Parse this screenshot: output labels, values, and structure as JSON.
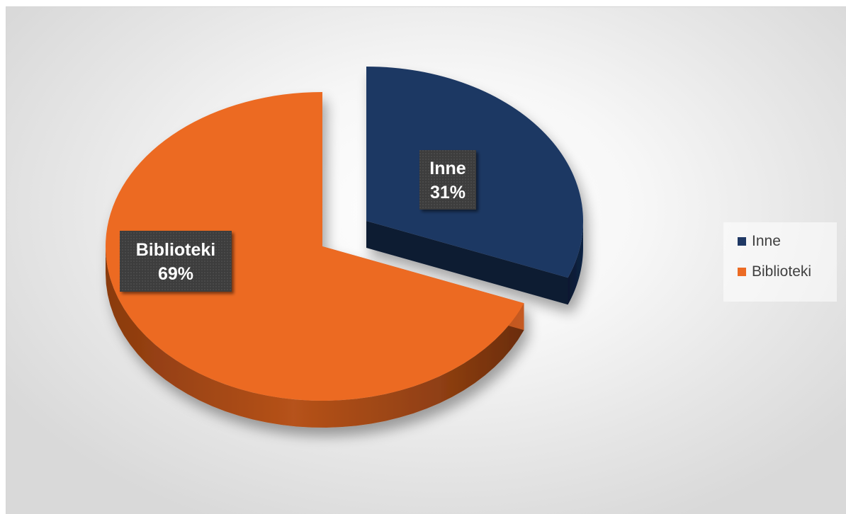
{
  "chart_data": {
    "type": "pie",
    "style": "3d-exploded",
    "categories": [
      "Inne",
      "Biblioteki"
    ],
    "values": [
      31,
      69
    ],
    "units": "%",
    "data_labels": [
      {
        "category": "Inne",
        "value": "31%"
      },
      {
        "category": "Biblioteki",
        "value": "69%"
      }
    ],
    "exploded_slice": "Inne",
    "colors": {
      "Inne": "#1f3864",
      "Biblioteki": "#ec6b24"
    },
    "legend": {
      "position": "right",
      "entries": [
        "Inne",
        "Biblioteki"
      ]
    }
  }
}
